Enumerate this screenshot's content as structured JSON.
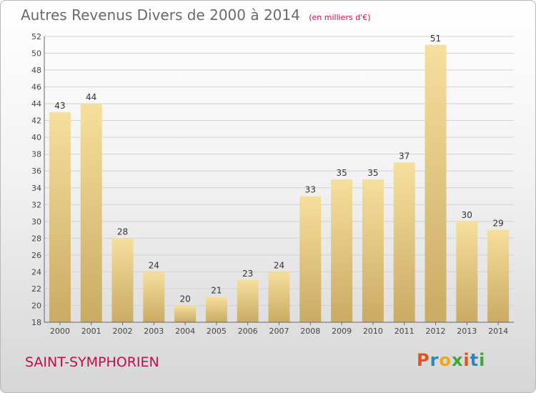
{
  "header": {
    "title": "Autres Revenus Divers de 2000 à 2014",
    "subtitle": "(en milliers d'€)"
  },
  "footer": {
    "location": "SAINT-SYMPHORIEN",
    "logo_letters": [
      "P",
      "r",
      "o",
      "x",
      "i",
      "t",
      "i"
    ],
    "logo_colors": [
      "#e8521c",
      "#2b86c6",
      "#f3a712",
      "#3aaa35",
      "#e8521c",
      "#2b86c6",
      "#3aaa35"
    ]
  },
  "chart_data": {
    "type": "bar",
    "title": "Autres Revenus Divers de 2000 à 2014",
    "subtitle": "(en milliers d'€)",
    "categories": [
      "2000",
      "2001",
      "2002",
      "2003",
      "2004",
      "2005",
      "2006",
      "2007",
      "2008",
      "2009",
      "2010",
      "2011",
      "2012",
      "2013",
      "2014"
    ],
    "values": [
      43,
      44,
      28,
      24,
      20,
      21,
      23,
      24,
      33,
      35,
      35,
      37,
      51,
      30,
      29
    ],
    "ylim": [
      18,
      52
    ],
    "yticks": [
      18,
      20,
      22,
      24,
      26,
      28,
      30,
      32,
      34,
      36,
      38,
      40,
      42,
      44,
      46,
      48,
      50,
      52
    ],
    "grid": true,
    "bar_color": "#e6c77e"
  }
}
